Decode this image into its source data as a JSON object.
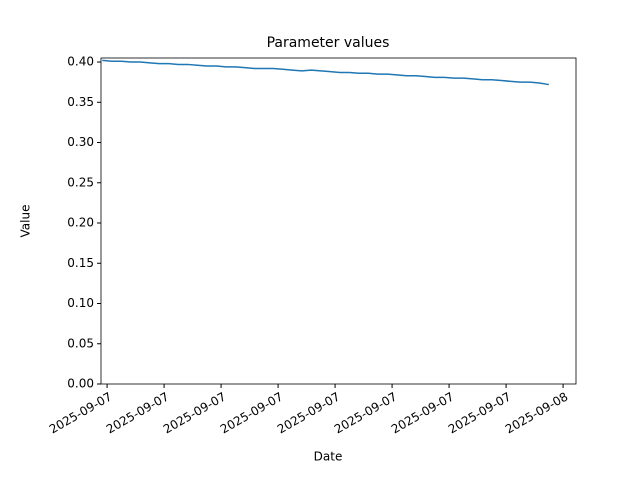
{
  "chart_data": {
    "type": "line",
    "title": "Parameter values",
    "x_label": "Date",
    "y_label": "Value",
    "x": [
      -0.25,
      0.25,
      0.75,
      1.25,
      1.75,
      2.25,
      2.75,
      3.25,
      3.75,
      4.25,
      4.75,
      5.25,
      5.75,
      6.25,
      6.75,
      7.25,
      7.75,
      8.25,
      8.75,
      9.25,
      9.75,
      10.25,
      10.75,
      11.25,
      11.75,
      12.25,
      12.75,
      13.25,
      13.75,
      14.25,
      14.75,
      15.25,
      15.75,
      16.25,
      16.75,
      17.25,
      17.75,
      18.25,
      18.75,
      19.25,
      19.75,
      20.25,
      20.75,
      21.25,
      21.75,
      22.25,
      22.75,
      23.25
    ],
    "values": [
      0.402,
      0.401,
      0.401,
      0.4,
      0.4,
      0.399,
      0.398,
      0.398,
      0.397,
      0.397,
      0.396,
      0.395,
      0.395,
      0.394,
      0.394,
      0.393,
      0.392,
      0.392,
      0.392,
      0.391,
      0.39,
      0.389,
      0.39,
      0.389,
      0.388,
      0.387,
      0.387,
      0.386,
      0.386,
      0.385,
      0.385,
      0.384,
      0.383,
      0.383,
      0.382,
      0.381,
      0.381,
      0.38,
      0.38,
      0.379,
      0.378,
      0.378,
      0.377,
      0.376,
      0.375,
      0.375,
      0.374,
      0.372
    ],
    "color": "#1f77b4",
    "xlim": [
      -0.32,
      24.68
    ],
    "xticks": [
      {
        "value": 0,
        "label": "2025-09-07"
      },
      {
        "value": 3,
        "label": "2025-09-07"
      },
      {
        "value": 6,
        "label": "2025-09-07"
      },
      {
        "value": 9,
        "label": "2025-09-07"
      },
      {
        "value": 12,
        "label": "2025-09-07"
      },
      {
        "value": 15,
        "label": "2025-09-07"
      },
      {
        "value": 18,
        "label": "2025-09-07"
      },
      {
        "value": 21,
        "label": "2025-09-07"
      },
      {
        "value": 24,
        "label": "2025-09-08"
      }
    ],
    "ylim": [
      0,
      0.405
    ],
    "yticks": [
      {
        "value": 0,
        "label": "0.00"
      },
      {
        "value": 0.05,
        "label": "0.05"
      },
      {
        "value": 0.1,
        "label": "0.10"
      },
      {
        "value": 0.15,
        "label": "0.15"
      },
      {
        "value": 0.2,
        "label": "0.20"
      },
      {
        "value": 0.25,
        "label": "0.25"
      },
      {
        "value": 0.3,
        "label": "0.30"
      },
      {
        "value": 0.35,
        "label": "0.35"
      },
      {
        "value": 0.4,
        "label": "0.40"
      }
    ]
  }
}
